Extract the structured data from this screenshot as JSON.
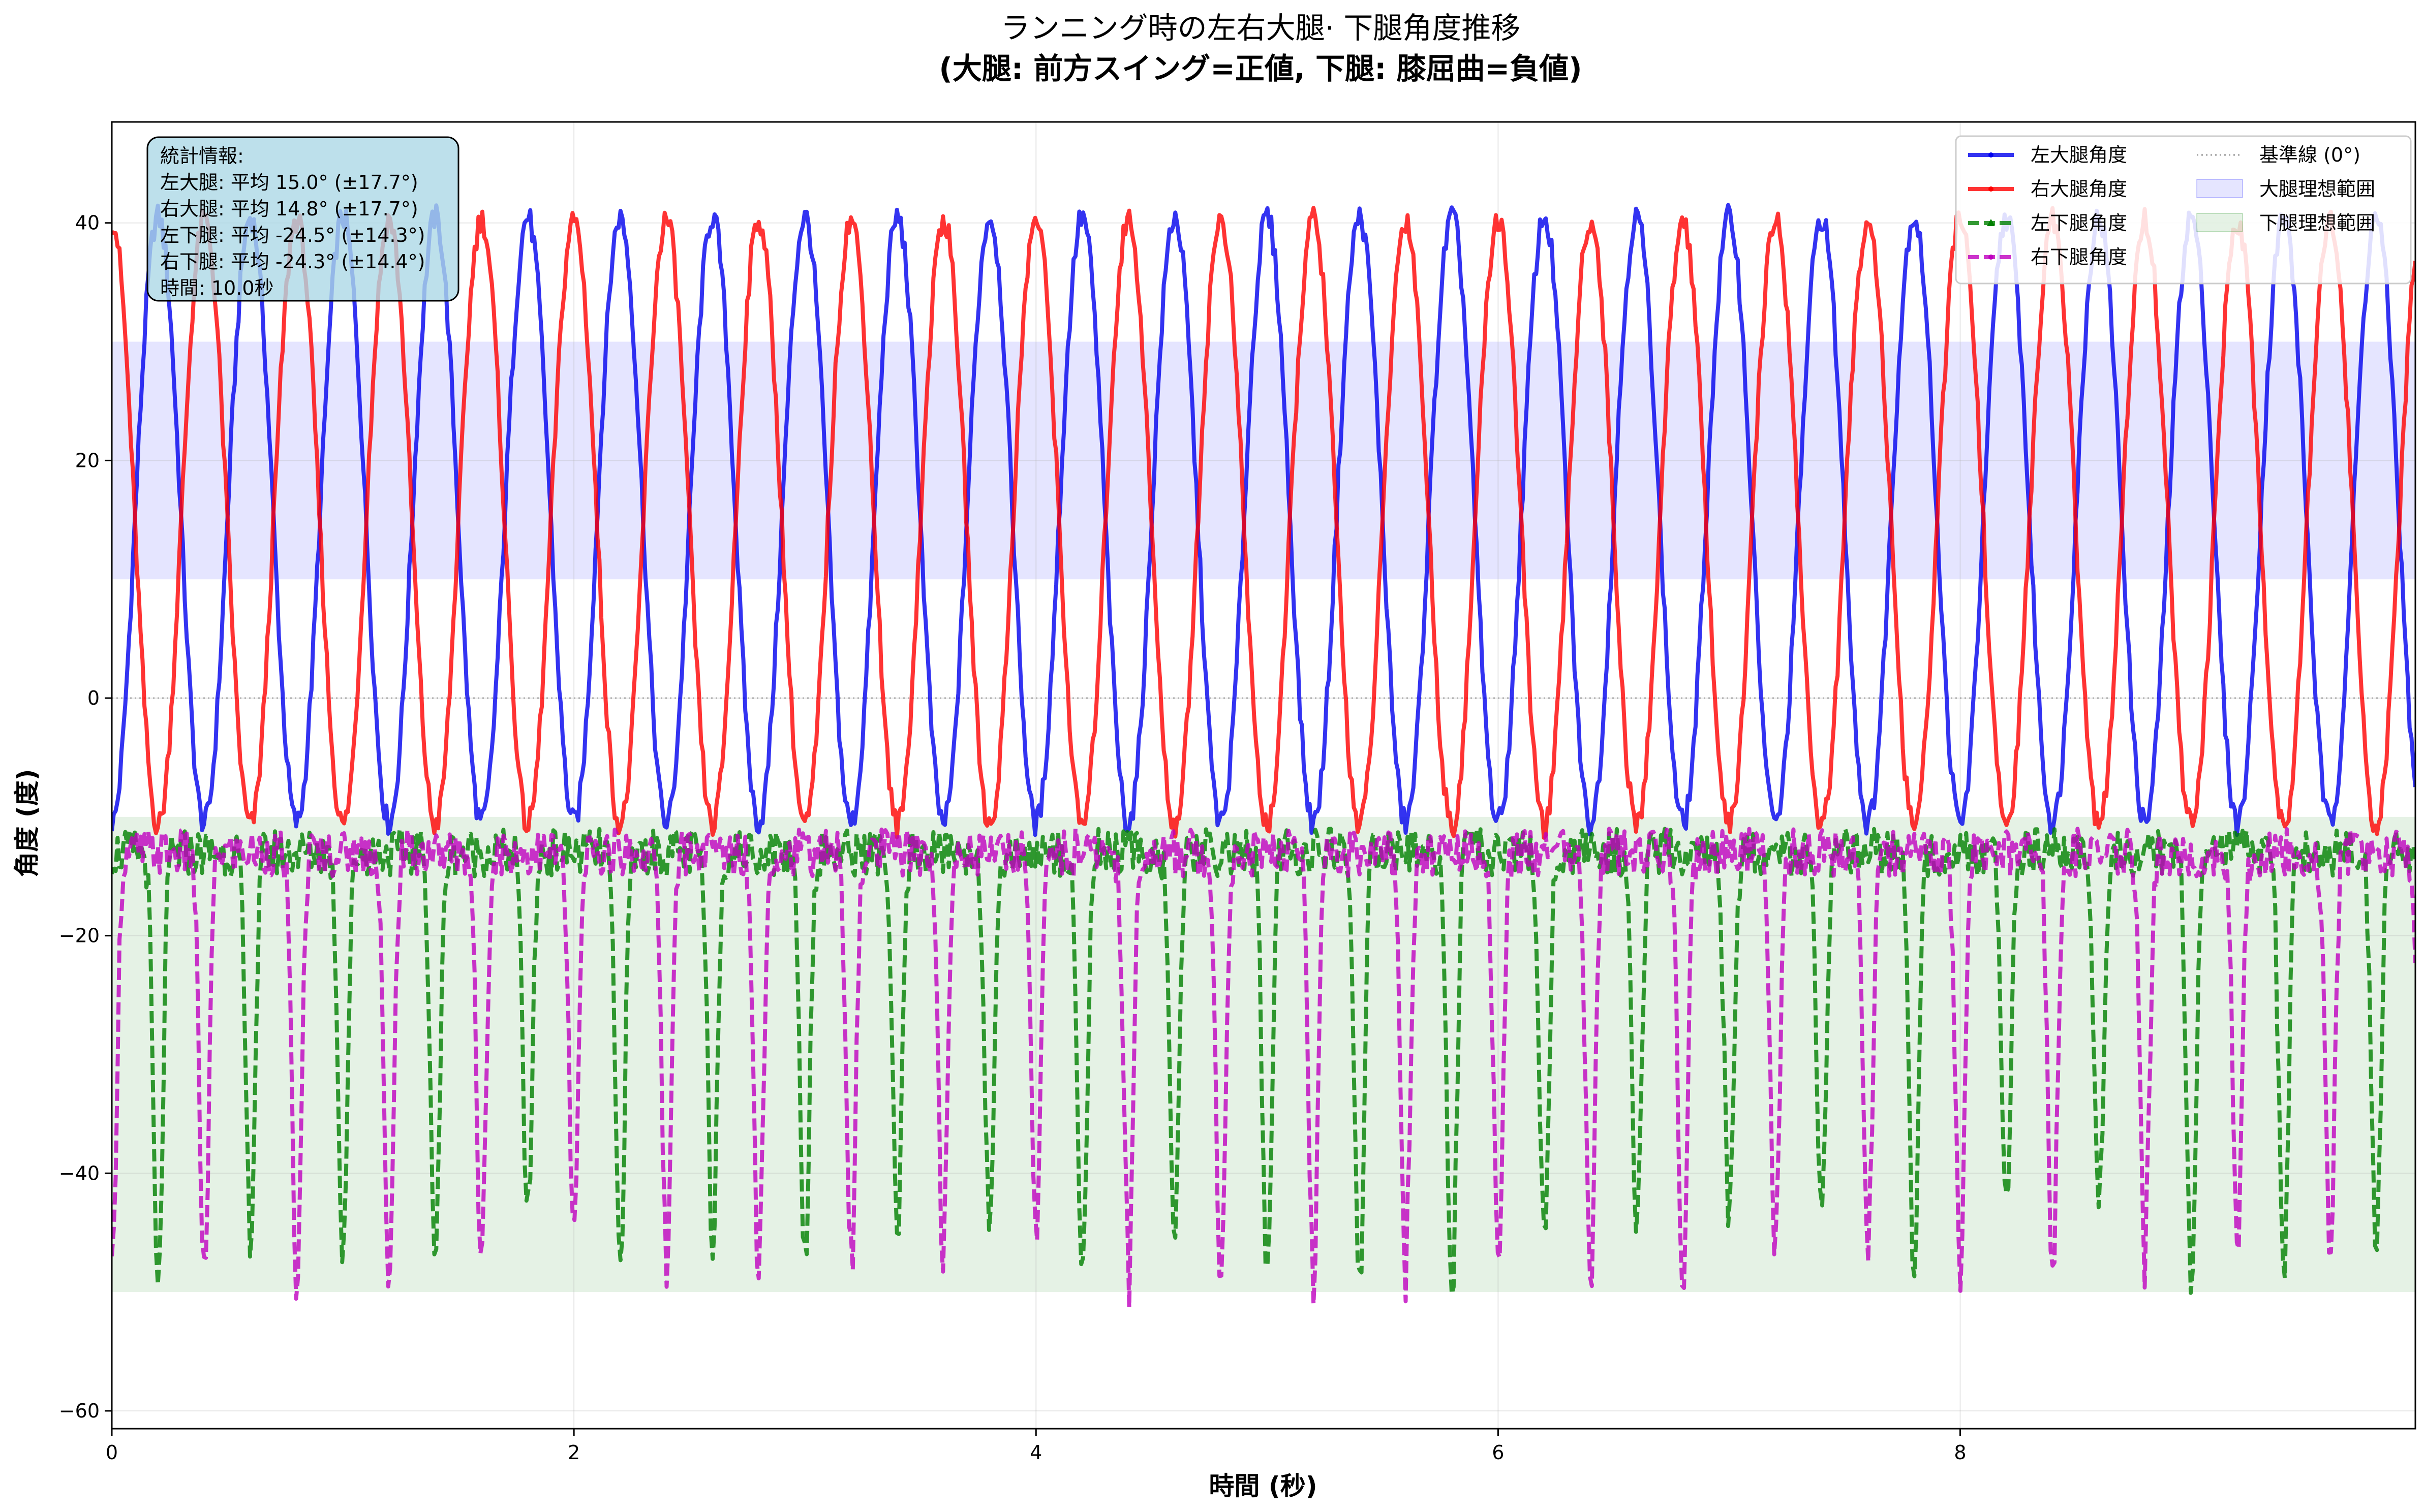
{
  "chart_data": {
    "type": "line",
    "title": "ランニング時の左右大腿· 下腿角度推移",
    "subtitle": "(大腿: 前方スイング=正値, 下腿: 膝屈曲=負値)",
    "xlabel": "時間 (秒)",
    "ylabel": "角度 (度)",
    "xlim": [
      0,
      9.97
    ],
    "ylim": [
      -61.5,
      48.5
    ],
    "x_ticks": [
      0,
      2,
      4,
      6,
      8
    ],
    "x_tick_labels": [
      "0",
      "2",
      "4",
      "6",
      "8"
    ],
    "y_ticks": [
      -60,
      -40,
      -20,
      0,
      20,
      40
    ],
    "y_tick_labels": [
      "−60",
      "−40",
      "−20",
      "0",
      "20",
      "40"
    ],
    "grid": true,
    "legend_position": "top-right",
    "stats_box": {
      "heading": "統計情報:",
      "lines": [
        "左大腿: 平均 15.0° (±17.7°)",
        "右大腿: 平均 14.8° (±17.7°)",
        "左下腿: 平均 -24.5° (±14.3°)",
        "右下腿: 平均 -24.3° (±14.4°)",
        "時間: 10.0秒"
      ]
    },
    "bands": [
      {
        "name": "大腿理想範囲",
        "y_range": [
          10,
          30
        ],
        "color": "#0000ff"
      },
      {
        "name": "下腿理想範囲",
        "y_range": [
          -50,
          -10
        ],
        "color": "#008000"
      }
    ],
    "reference_line": {
      "name": "基準線 (0°)",
      "y": 0,
      "color": "#999999"
    },
    "series": [
      {
        "name": "左大腿角度",
        "color": "#0000ee",
        "style": "solid",
        "marker": "dot",
        "mean": 15.0,
        "amplitude": 25.5,
        "period_s": 0.4,
        "phase_s": 0.1,
        "x": [
          0.0,
          0.1,
          0.2,
          0.3,
          0.4,
          0.5,
          0.6,
          0.7,
          0.8,
          0.9,
          1.0
        ],
        "values": [
          15.0,
          37.0,
          28.0,
          -10.0,
          -8.0,
          37.0,
          30.0,
          -11.0,
          -8.0,
          38.0,
          29.0
        ]
      },
      {
        "name": "右大腿角度",
        "color": "#ff0000",
        "style": "solid",
        "marker": "dot",
        "mean": 14.8,
        "amplitude": 25.5,
        "period_s": 0.4,
        "phase_s": -0.1,
        "x": [
          0.0,
          0.1,
          0.2,
          0.3,
          0.4,
          0.5,
          0.6,
          0.7,
          0.8,
          0.9,
          1.0
        ],
        "values": [
          14.0,
          -11.0,
          -8.0,
          37.0,
          29.0,
          -12.0,
          -8.0,
          38.0,
          30.0,
          -10.0,
          -9.0
        ]
      },
      {
        "name": "左下腿角度",
        "color": "#008000",
        "style": "dashed",
        "marker": "triangle",
        "mean": -24.5,
        "min": -52.0,
        "max": -10.0,
        "period_s": 0.4,
        "phase_s": 0.2,
        "x": [
          0.0,
          0.1,
          0.2,
          0.3,
          0.4,
          0.5,
          0.6,
          0.7,
          0.8,
          0.9,
          1.0
        ],
        "values": [
          -12.0,
          -49.0,
          -12.0,
          -14.0,
          -13.0,
          -46.0,
          -12.0,
          -14.0,
          -13.0,
          -56.0,
          -12.0
        ]
      },
      {
        "name": "右下腿角度",
        "color": "#bf00bf",
        "style": "dashed",
        "marker": "dot",
        "mean": -24.3,
        "min": -52.0,
        "max": -10.0,
        "period_s": 0.4,
        "phase_s": 0.0,
        "x": [
          0.0,
          0.1,
          0.2,
          0.3,
          0.4,
          0.5,
          0.6,
          0.7,
          0.8,
          0.9,
          1.0
        ],
        "values": [
          -32.0,
          -14.0,
          -13.0,
          -47.0,
          -12.0,
          -14.0,
          -13.0,
          -50.0,
          -12.0,
          -14.0,
          -13.0
        ]
      }
    ]
  }
}
